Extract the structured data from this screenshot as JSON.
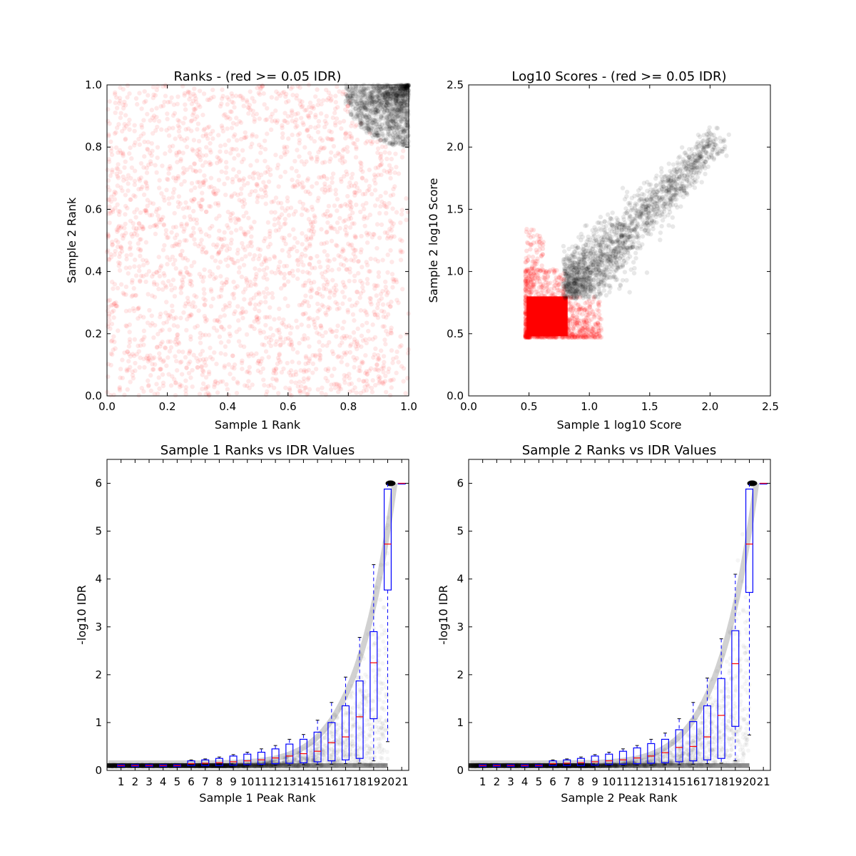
{
  "chart_data": [
    {
      "type": "scatter",
      "title": "Ranks - (red >= 0.05 IDR)",
      "xlabel": "Sample 1 Rank",
      "ylabel": "Sample 2 Rank",
      "xlim": [
        0.0,
        1.0
      ],
      "ylim": [
        0.0,
        1.0
      ],
      "xticks": [
        "0.0",
        "0.2",
        "0.4",
        "0.6",
        "0.8",
        "1.0"
      ],
      "yticks": [
        "0.0",
        "0.2",
        "0.4",
        "0.6",
        "0.8",
        "1.0"
      ],
      "grid": false,
      "colors": {
        "red": "#ff0000",
        "black": "#000000"
      },
      "series": [
        {
          "color": "red",
          "description_of_extent": "uniform cloud over x 0.0–1.0, y 0.0–1.0 (excluding top-right corner)",
          "x_range": [
            0.0,
            1.0
          ],
          "y_range": [
            0.0,
            1.0
          ]
        },
        {
          "color": "black",
          "description_of_extent": "dense cluster in top-right corner",
          "x_range": [
            0.8,
            1.0
          ],
          "y_range": [
            0.79,
            1.0
          ]
        }
      ]
    },
    {
      "type": "scatter",
      "title": "Log10 Scores - (red >= 0.05 IDR)",
      "xlabel": "Sample 1 log10 Score",
      "ylabel": "Sample 2 log10 Score",
      "xlim": [
        0.0,
        2.5
      ],
      "ylim": [
        0.0,
        2.5
      ],
      "xticks": [
        "0.0",
        "0.5",
        "1.0",
        "1.5",
        "2.0",
        "2.5"
      ],
      "yticks": [
        "0.0",
        "0.5",
        "1.0",
        "1.5",
        "2.0",
        "2.5"
      ],
      "grid": false,
      "series": [
        {
          "color": "red",
          "x_range": [
            0.47,
            1.1
          ],
          "y_range": [
            0.47,
            1.35
          ]
        },
        {
          "color": "black",
          "x_range": [
            0.78,
            2.1
          ],
          "y_range": [
            0.78,
            2.08
          ]
        }
      ]
    },
    {
      "type": "box",
      "title": "Sample 1 Ranks vs IDR Values",
      "xlabel": "Sample 1 Peak Rank",
      "ylabel": "-log10 IDR",
      "ylim": [
        0,
        6.5
      ],
      "yticks": [
        "0",
        "1",
        "2",
        "3",
        "4",
        "5",
        "6"
      ],
      "categories": [
        "1",
        "2",
        "3",
        "4",
        "5",
        "6",
        "7",
        "8",
        "9",
        "10",
        "11",
        "12",
        "13",
        "14",
        "15",
        "16",
        "17",
        "18",
        "19",
        "20",
        "21"
      ],
      "boxes": [
        {
          "q1": 0.08,
          "median": 0.1,
          "q3": 0.12,
          "wlow": 0.07,
          "whigh": 0.13
        },
        {
          "q1": 0.08,
          "median": 0.1,
          "q3": 0.12,
          "wlow": 0.07,
          "whigh": 0.13
        },
        {
          "q1": 0.08,
          "median": 0.1,
          "q3": 0.12,
          "wlow": 0.07,
          "whigh": 0.13
        },
        {
          "q1": 0.08,
          "median": 0.1,
          "q3": 0.12,
          "wlow": 0.07,
          "whigh": 0.13
        },
        {
          "q1": 0.08,
          "median": 0.1,
          "q3": 0.12,
          "wlow": 0.07,
          "whigh": 0.13
        },
        {
          "q1": 0.1,
          "median": 0.14,
          "q3": 0.2,
          "wlow": 0.09,
          "whigh": 0.22
        },
        {
          "q1": 0.1,
          "median": 0.15,
          "q3": 0.22,
          "wlow": 0.09,
          "whigh": 0.24
        },
        {
          "q1": 0.1,
          "median": 0.16,
          "q3": 0.25,
          "wlow": 0.09,
          "whigh": 0.28
        },
        {
          "q1": 0.11,
          "median": 0.18,
          "q3": 0.3,
          "wlow": 0.1,
          "whigh": 0.33
        },
        {
          "q1": 0.12,
          "median": 0.2,
          "q3": 0.34,
          "wlow": 0.1,
          "whigh": 0.38
        },
        {
          "q1": 0.13,
          "median": 0.22,
          "q3": 0.38,
          "wlow": 0.1,
          "whigh": 0.45
        },
        {
          "q1": 0.14,
          "median": 0.26,
          "q3": 0.45,
          "wlow": 0.11,
          "whigh": 0.52
        },
        {
          "q1": 0.15,
          "median": 0.3,
          "q3": 0.55,
          "wlow": 0.11,
          "whigh": 0.65
        },
        {
          "q1": 0.16,
          "median": 0.35,
          "q3": 0.65,
          "wlow": 0.12,
          "whigh": 0.75
        },
        {
          "q1": 0.18,
          "median": 0.4,
          "q3": 0.8,
          "wlow": 0.12,
          "whigh": 1.05
        },
        {
          "q1": 0.2,
          "median": 0.58,
          "q3": 1.0,
          "wlow": 0.13,
          "whigh": 1.42
        },
        {
          "q1": 0.22,
          "median": 0.7,
          "q3": 1.35,
          "wlow": 0.14,
          "whigh": 1.95
        },
        {
          "q1": 0.25,
          "median": 1.12,
          "q3": 1.87,
          "wlow": 0.15,
          "whigh": 2.78
        },
        {
          "q1": 1.08,
          "median": 2.25,
          "q3": 2.9,
          "wlow": 0.2,
          "whigh": 4.3
        },
        {
          "q1": 3.77,
          "median": 4.73,
          "q3": 5.88,
          "wlow": 0.6,
          "whigh": 6.0
        },
        {
          "q1": 6.0,
          "median": 6.0,
          "q3": 6.0,
          "wlow": 6.0,
          "whigh": 6.0
        }
      ]
    },
    {
      "type": "box",
      "title": "Sample 2 Ranks vs IDR Values",
      "xlabel": "Sample 2 Peak Rank",
      "ylabel": "-log10 IDR",
      "ylim": [
        0,
        6.5
      ],
      "yticks": [
        "0",
        "1",
        "2",
        "3",
        "4",
        "5",
        "6"
      ],
      "categories": [
        "1",
        "2",
        "3",
        "4",
        "5",
        "6",
        "7",
        "8",
        "9",
        "10",
        "11",
        "12",
        "13",
        "14",
        "15",
        "16",
        "17",
        "18",
        "19",
        "20",
        "21"
      ],
      "boxes": [
        {
          "q1": 0.08,
          "median": 0.1,
          "q3": 0.12,
          "wlow": 0.07,
          "whigh": 0.13
        },
        {
          "q1": 0.08,
          "median": 0.1,
          "q3": 0.12,
          "wlow": 0.07,
          "whigh": 0.13
        },
        {
          "q1": 0.08,
          "median": 0.1,
          "q3": 0.12,
          "wlow": 0.07,
          "whigh": 0.13
        },
        {
          "q1": 0.08,
          "median": 0.1,
          "q3": 0.12,
          "wlow": 0.07,
          "whigh": 0.13
        },
        {
          "q1": 0.08,
          "median": 0.1,
          "q3": 0.12,
          "wlow": 0.07,
          "whigh": 0.13
        },
        {
          "q1": 0.1,
          "median": 0.14,
          "q3": 0.2,
          "wlow": 0.09,
          "whigh": 0.22
        },
        {
          "q1": 0.1,
          "median": 0.15,
          "q3": 0.22,
          "wlow": 0.09,
          "whigh": 0.24
        },
        {
          "q1": 0.1,
          "median": 0.16,
          "q3": 0.25,
          "wlow": 0.09,
          "whigh": 0.28
        },
        {
          "q1": 0.11,
          "median": 0.18,
          "q3": 0.3,
          "wlow": 0.1,
          "whigh": 0.33
        },
        {
          "q1": 0.12,
          "median": 0.2,
          "q3": 0.34,
          "wlow": 0.1,
          "whigh": 0.38
        },
        {
          "q1": 0.13,
          "median": 0.22,
          "q3": 0.4,
          "wlow": 0.1,
          "whigh": 0.45
        },
        {
          "q1": 0.14,
          "median": 0.26,
          "q3": 0.47,
          "wlow": 0.11,
          "whigh": 0.52
        },
        {
          "q1": 0.15,
          "median": 0.3,
          "q3": 0.56,
          "wlow": 0.11,
          "whigh": 0.65
        },
        {
          "q1": 0.16,
          "median": 0.37,
          "q3": 0.65,
          "wlow": 0.12,
          "whigh": 0.78
        },
        {
          "q1": 0.18,
          "median": 0.48,
          "q3": 0.85,
          "wlow": 0.12,
          "whigh": 1.08
        },
        {
          "q1": 0.2,
          "median": 0.5,
          "q3": 1.02,
          "wlow": 0.13,
          "whigh": 1.42
        },
        {
          "q1": 0.22,
          "median": 0.7,
          "q3": 1.35,
          "wlow": 0.14,
          "whigh": 1.93
        },
        {
          "q1": 0.25,
          "median": 1.15,
          "q3": 1.92,
          "wlow": 0.15,
          "whigh": 2.75
        },
        {
          "q1": 0.92,
          "median": 2.23,
          "q3": 2.92,
          "wlow": 0.2,
          "whigh": 4.1
        },
        {
          "q1": 3.72,
          "median": 4.73,
          "q3": 5.88,
          "wlow": 0.74,
          "whigh": 6.0
        },
        {
          "q1": 6.0,
          "median": 6.0,
          "q3": 6.0,
          "wlow": 6.0,
          "whigh": 6.0
        }
      ]
    }
  ]
}
